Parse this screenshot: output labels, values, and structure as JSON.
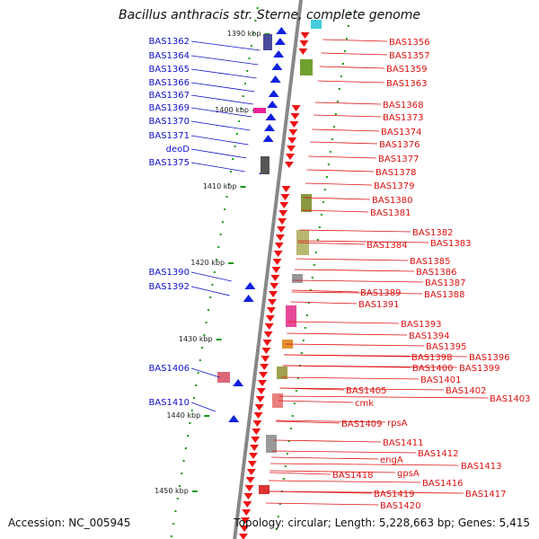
{
  "title": "Bacillus anthracis str. Sterne, complete genome",
  "footer": {
    "accession": "Accession: NC_005945",
    "summary": "Topology: circular; Length: 5,228,663 bp; Genes: 5,415"
  },
  "scale_labels": [
    "1390 kbp",
    "1400 kbp",
    "1410 kbp",
    "1420 kbp",
    "1430 kbp",
    "1440 kbp",
    "1450 kbp"
  ],
  "left_labels": [
    "BAS1362",
    "BAS1364",
    "BAS1365",
    "BAS1366",
    "BAS1367",
    "BAS1369",
    "BAS1370",
    "BAS1371",
    "deoD",
    "BAS1375",
    "BAS1390",
    "BAS1392",
    "BAS1406",
    "BAS1410"
  ],
  "right_labels": [
    "BAS1356",
    "BAS1357",
    "BAS1359",
    "BAS1363",
    "BAS1368",
    "BAS1373",
    "BAS1374",
    "BAS1376",
    "BAS1377",
    "BAS1378",
    "BAS1379",
    "BAS1380",
    "BAS1381",
    "BAS1382",
    "BAS1384",
    "BAS1383",
    "BAS1385",
    "BAS1386",
    "BAS1387",
    "BAS1389",
    "BAS1388",
    "BAS1391",
    "BAS1393",
    "BAS1394",
    "BAS1395",
    "BAS1398",
    "BAS1396",
    "BAS1400",
    "BAS1399",
    "BAS1401",
    "BAS1405",
    "BAS1402",
    "BAS1403",
    "cmk",
    "BAS1409",
    "rpsA",
    "BAS1411",
    "BAS1412",
    "engA",
    "BAS1413",
    "gpsA",
    "BAS1418",
    "BAS1416",
    "BAS1417",
    "BAS1419",
    "BAS1420"
  ],
  "colors": {
    "forward_strand": "#1020dd",
    "reverse_strand": "#ee1111",
    "backbone": "#888888",
    "tick": "#119911",
    "left_label": "#1010cc",
    "right_label": "#dd1111"
  }
}
